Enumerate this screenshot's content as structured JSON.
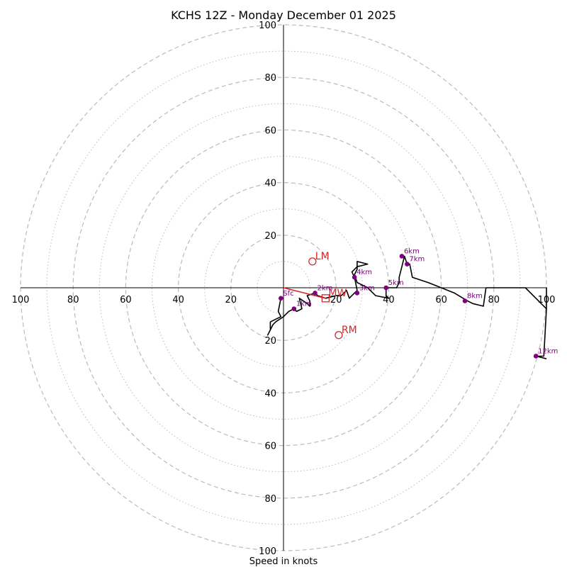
{
  "chart_data": {
    "type": "hodograph",
    "title": "KCHS 12Z - Monday December 01 2025",
    "xlabel": "Speed in knots",
    "u_range": [
      -100,
      100
    ],
    "v_range": [
      -100,
      100
    ],
    "rings_dashed": [
      20,
      40,
      60,
      80,
      100
    ],
    "rings_dotted": [
      10,
      30,
      50,
      70,
      90
    ],
    "tick_labels": {
      "left": [
        "100",
        "80",
        "60",
        "40",
        "20"
      ],
      "right": [
        "20",
        "40",
        "60",
        "80",
        "100"
      ],
      "top": [
        "20",
        "40",
        "60",
        "80",
        "100"
      ],
      "bottom": [
        "20",
        "40",
        "60",
        "80",
        "100"
      ]
    },
    "colors": {
      "hodo_line": "#000000",
      "height_marker": "#800080",
      "motion": "#d62728",
      "grid": "#bbbbbb"
    },
    "hodograph_uv": [
      [
        -1,
        -4
      ],
      [
        -2,
        -9
      ],
      [
        -1,
        -11
      ],
      [
        -5,
        -13
      ],
      [
        -5,
        -16
      ],
      [
        -6,
        -18
      ],
      [
        -4,
        -14
      ],
      [
        -3,
        -13
      ],
      [
        0,
        -11
      ],
      [
        2,
        -9
      ],
      [
        4,
        -8
      ],
      [
        5,
        -9
      ],
      [
        7,
        -8
      ],
      [
        6,
        -4
      ],
      [
        9,
        -6
      ],
      [
        10,
        -7
      ],
      [
        10,
        -5
      ],
      [
        9,
        -3
      ],
      [
        12,
        -2
      ],
      [
        13,
        -3
      ],
      [
        16,
        -4
      ],
      [
        20,
        -3
      ],
      [
        22,
        -3
      ],
      [
        24,
        -1
      ],
      [
        25,
        -4
      ],
      [
        26,
        -3
      ],
      [
        28,
        -1
      ],
      [
        27,
        4
      ],
      [
        26,
        6
      ],
      [
        28,
        8
      ],
      [
        32,
        9
      ],
      [
        28,
        10
      ],
      [
        28,
        7
      ],
      [
        27,
        5
      ],
      [
        28,
        2
      ],
      [
        32,
        0
      ],
      [
        35,
        -3
      ],
      [
        40,
        -4
      ],
      [
        39,
        -3
      ],
      [
        39,
        0
      ],
      [
        41,
        0
      ],
      [
        43,
        0
      ],
      [
        44,
        2
      ],
      [
        44,
        4
      ],
      [
        45,
        8
      ],
      [
        46,
        12
      ],
      [
        47,
        9
      ],
      [
        48,
        9
      ],
      [
        49,
        4
      ],
      [
        55,
        2
      ],
      [
        60,
        0
      ],
      [
        65,
        -2
      ],
      [
        70,
        -5
      ],
      [
        72,
        -6
      ],
      [
        76,
        -7
      ],
      [
        77,
        0
      ],
      [
        92,
        0
      ],
      [
        100,
        -8
      ],
      [
        100,
        0
      ],
      [
        100,
        -8
      ],
      [
        99,
        -26
      ],
      [
        96,
        -26
      ],
      [
        100,
        -27
      ]
    ],
    "height_markers": [
      {
        "label": "Sfc",
        "u": -1,
        "v": -4
      },
      {
        "label": "1km",
        "u": 4,
        "v": -8
      },
      {
        "label": "2km",
        "u": 12,
        "v": -2
      },
      {
        "label": "3km",
        "u": 28,
        "v": -2
      },
      {
        "label": "4km",
        "u": 27,
        "v": 4
      },
      {
        "label": "5km",
        "u": 39,
        "v": 0
      },
      {
        "label": "6km",
        "u": 45,
        "v": 12
      },
      {
        "label": "7km",
        "u": 47,
        "v": 9
      },
      {
        "label": "8km",
        "u": 69,
        "v": -5
      },
      {
        "label": "12km",
        "u": 96,
        "v": -26
      }
    ],
    "storm_motion": [
      {
        "label": "LM",
        "u": 11,
        "v": 10,
        "marker": "circle"
      },
      {
        "label": "RM",
        "u": 21,
        "v": -18,
        "marker": "circle"
      },
      {
        "label": "MW",
        "u": 16,
        "v": -4,
        "marker": "square"
      }
    ],
    "shear_vector": {
      "from": [
        0,
        0
      ],
      "to": [
        16,
        -4
      ]
    }
  }
}
